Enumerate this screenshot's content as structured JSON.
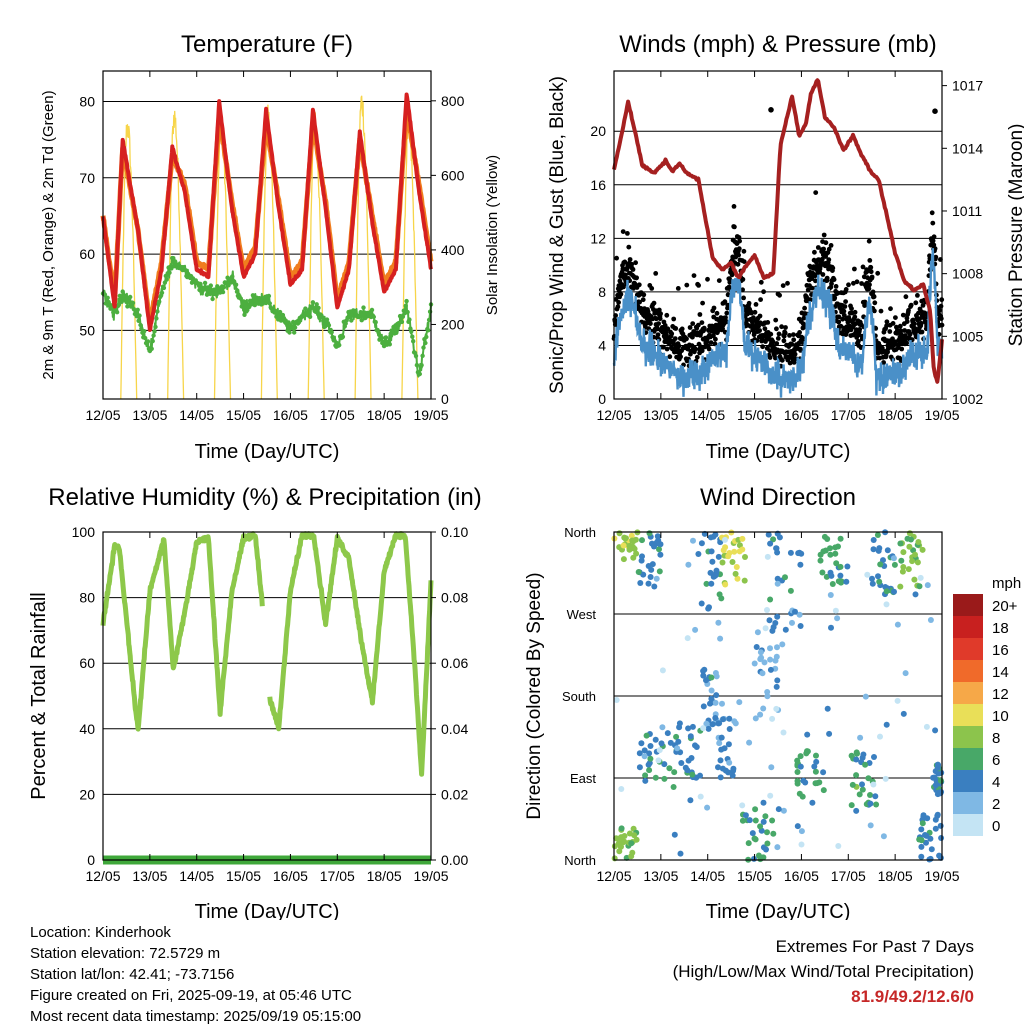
{
  "colors": {
    "temp_2m": "#d62020",
    "temp_9m": "#f07d1e",
    "dewpoint": "#4caf3f",
    "insolation": "#f7d54a",
    "wind": "#000000",
    "gust": "#4a90c8",
    "pressure": "#a52020",
    "rh": "#8dc84a",
    "precip": "#3fa83a"
  },
  "x_ticks": [
    "12/05",
    "13/05",
    "14/05",
    "15/05",
    "16/05",
    "17/05",
    "18/05",
    "19/05"
  ],
  "chart_data": [
    {
      "type": "line",
      "title": "Temperature (F)",
      "xlabel": "Time (Day/UTC)",
      "ylabel": "2m & 9m T (Red, Orange) & 2m Td (Green)",
      "y2label": "Solar Insolation (Yellow)",
      "ylim": [
        41,
        84
      ],
      "yticks": [
        50,
        60,
        70,
        80
      ],
      "y2lim": [
        0,
        880
      ],
      "y2ticks": [
        0,
        200,
        400,
        600,
        800
      ],
      "grid": true,
      "x": [
        0,
        0.25,
        0.42,
        0.75,
        1.0,
        1.25,
        1.48,
        1.75,
        2.0,
        2.25,
        2.48,
        2.75,
        3.0,
        3.25,
        3.48,
        3.75,
        4.0,
        4.25,
        4.48,
        4.75,
        5.0,
        5.25,
        5.48,
        5.75,
        6.0,
        6.25,
        6.48,
        6.75,
        7.0
      ],
      "series": [
        {
          "name": "2m T",
          "values": [
            65,
            53,
            75,
            63,
            50,
            58,
            74,
            68,
            58,
            57,
            80,
            66,
            57,
            60,
            79,
            66,
            56,
            58,
            79,
            66,
            53,
            58,
            76,
            64,
            55,
            58,
            81,
            68,
            58
          ]
        },
        {
          "name": "9m T",
          "values": [
            65,
            54,
            74,
            63,
            51,
            59,
            73,
            69,
            59,
            58,
            78,
            67,
            58,
            61,
            77,
            67,
            57,
            59,
            77,
            67,
            54,
            59,
            75,
            65,
            56,
            59,
            79,
            69,
            59
          ]
        },
        {
          "name": "2m Td",
          "values": [
            55,
            52,
            55,
            52,
            47,
            55,
            59,
            58,
            56,
            55,
            55,
            57,
            53,
            54,
            54,
            52,
            50,
            52,
            53,
            51,
            48,
            52,
            52,
            52,
            48,
            50,
            53,
            44,
            53
          ]
        },
        {
          "name": "Solar Insolation",
          "peaks": [
            {
              "start": 0.38,
              "peak": 0.52,
              "end": 0.72,
              "value": 770
            },
            {
              "start": 1.38,
              "peak": 1.52,
              "end": 1.72,
              "value": 800
            },
            {
              "start": 2.38,
              "peak": 2.52,
              "end": 2.72,
              "value": 770
            },
            {
              "start": 3.38,
              "peak": 3.52,
              "end": 3.72,
              "value": 790
            },
            {
              "start": 4.38,
              "peak": 4.52,
              "end": 4.72,
              "value": 780
            },
            {
              "start": 5.38,
              "peak": 5.52,
              "end": 5.72,
              "value": 840
            },
            {
              "start": 6.38,
              "peak": 6.52,
              "end": 6.72,
              "value": 770
            }
          ]
        }
      ]
    },
    {
      "type": "scatter",
      "title": "Winds (mph) & Pressure (mb)",
      "xlabel": "Time (Day/UTC)",
      "ylabel": "Sonic/Prop Wind & Gust (Blue, Black)",
      "y2label": "Station Pressure (Maroon)",
      "ylim": [
        0,
        24.5
      ],
      "yticks": [
        0,
        4,
        8,
        12,
        16,
        20
      ],
      "y2lim": [
        1002,
        1017.7
      ],
      "y2ticks": [
        1002,
        1005,
        1008,
        1011,
        1014,
        1017
      ],
      "grid": true,
      "pressure": {
        "x": [
          0,
          0.1,
          0.3,
          0.45,
          0.6,
          0.85,
          1.1,
          1.25,
          1.4,
          1.55,
          1.8,
          2.1,
          2.3,
          2.5,
          2.65,
          2.8,
          3.0,
          3.2,
          3.4,
          3.55,
          3.8,
          3.95,
          4.1,
          4.2,
          4.35,
          4.5,
          4.7,
          4.9,
          5.1,
          5.3,
          5.5,
          5.65,
          5.8,
          6.0,
          6.2,
          6.4,
          6.6,
          6.75,
          6.82,
          6.9,
          7.0
        ],
        "values": [
          1013,
          1014,
          1016.2,
          1014.8,
          1013.2,
          1012.8,
          1013.4,
          1012.9,
          1013.3,
          1012.8,
          1012.5,
          1008.8,
          1008.2,
          1008.5,
          1007.8,
          1008.3,
          1008.9,
          1007.8,
          1008,
          1014.1,
          1016.5,
          1014.6,
          1015.2,
          1016.6,
          1017.3,
          1015.5,
          1015,
          1013.9,
          1014.6,
          1013.6,
          1012.8,
          1012.5,
          1011,
          1009,
          1007.6,
          1007.2,
          1007.5,
          1006.2,
          1003.5,
          1002.8,
          1004.8
        ]
      },
      "wind_sustained_range": [
        0,
        13
      ],
      "gust_max": 21.6
    },
    {
      "type": "line",
      "title": "Relative Humidity (%) & Precipitation (in)",
      "xlabel": "Time (Day/UTC)",
      "ylabel": "Percent & Total Rainfall",
      "ylim": [
        0,
        100
      ],
      "yticks": [
        0,
        20,
        40,
        60,
        80,
        100
      ],
      "y2lim": [
        0,
        0.1
      ],
      "y2ticks": [
        "0.00",
        "0.02",
        "0.04",
        "0.06",
        "0.08",
        "0.10"
      ],
      "grid": true,
      "x": [
        0,
        0.25,
        0.35,
        0.7,
        0.75,
        1.0,
        1.3,
        1.5,
        1.75,
        2.0,
        2.25,
        2.5,
        2.75,
        3.0,
        3.25,
        3.4,
        3.5,
        3.55,
        3.75,
        4.0,
        4.25,
        4.5,
        4.75,
        5.0,
        5.25,
        5.5,
        5.75,
        6.0,
        6.25,
        6.45,
        6.65,
        6.8,
        7.0
      ],
      "series": [
        {
          "name": "RH",
          "values": [
            72,
            96,
            95,
            45,
            40,
            82,
            98,
            58,
            76,
            97,
            98,
            45,
            82,
            98,
            99,
            78,
            null,
            50,
            40,
            82,
            99,
            99,
            72,
            98,
            92,
            68,
            48,
            88,
            99,
            99,
            60,
            26,
            85
          ]
        },
        {
          "name": "Precipitation",
          "values": [
            0,
            0,
            0,
            0,
            0,
            0,
            0,
            0,
            0,
            0,
            0,
            0,
            0,
            0,
            0,
            0,
            0,
            0,
            0,
            0,
            0,
            0,
            0,
            0,
            0,
            0,
            0,
            0,
            0,
            0,
            0,
            0,
            0
          ]
        }
      ]
    },
    {
      "type": "scatter",
      "title": "Wind Direction",
      "xlabel": "Time (Day/UTC)",
      "ylabel": "Direction (Colored By Speed)",
      "ylim": [
        0,
        360
      ],
      "ytick_labels": [
        "North",
        "East",
        "South",
        "West",
        "North"
      ],
      "legend": {
        "title": "mph",
        "placement": "right",
        "labels": [
          "20+",
          "18",
          "16",
          "14",
          "12",
          "10",
          "8",
          "6",
          "4",
          "2",
          "0"
        ],
        "colors": [
          "#9a1a1a",
          "#c8201f",
          "#e03a2a",
          "#f06a2a",
          "#f6a848",
          "#e9df58",
          "#8cc44c",
          "#48a868",
          "#3a7fc0",
          "#7fb8e4",
          "#c4e4f4"
        ]
      }
    }
  ],
  "footer": {
    "location": "Location: Kinderhook",
    "elevation": "Station elevation: 72.5729 m",
    "latlon": "Station lat/lon: 42.41; -73.7156",
    "created": "Figure created on Fri, 2025-09-19, at 05:46 UTC",
    "recent": "Most recent data timestamp: 2025/09/19 05:15:00"
  },
  "extremes": {
    "title": "Extremes For Past 7 Days",
    "subtitle": "(High/Low/Max Wind/Total Precipitation)",
    "values": "81.9/49.2/12.6/0"
  }
}
